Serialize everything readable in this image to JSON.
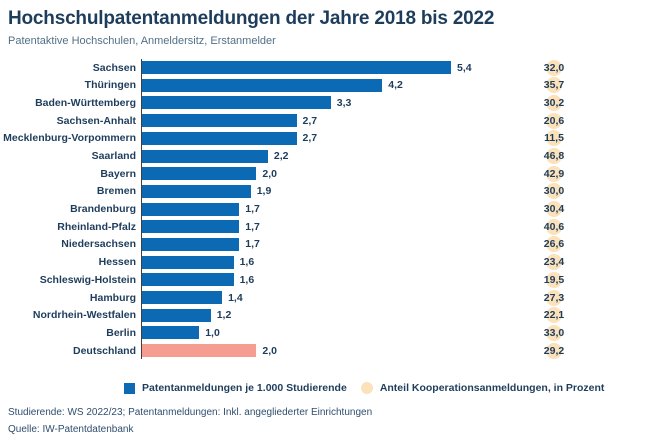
{
  "header": {
    "title": "Hochschulpatentanmeldungen der Jahre 2018 bis 2022",
    "subtitle": "Patentaktive Hochschulen, Anmeldersitz, Erstanmelder"
  },
  "chart_data": {
    "type": "bar",
    "orientation": "horizontal",
    "title": "Hochschulpatentanmeldungen der Jahre 2018 bis 2022",
    "subtitle": "Patentaktive Hochschulen, Anmeldersitz, Erstanmelder",
    "xlim": [
      0,
      5.6
    ],
    "grid": false,
    "legend_position": "bottom",
    "series": [
      {
        "name": "Patentanmeldungen je 1.000 Studierende",
        "mark": "bar",
        "color": "#0c69b4"
      },
      {
        "name": "Anteil Kooperationsanmeldungen, in Prozent",
        "mark": "circle-label",
        "color": "#fbe2bb"
      }
    ],
    "categories": [
      "Sachsen",
      "Thüringen",
      "Baden-Württemberg",
      "Sachsen-Anhalt",
      "Mecklenburg-Vorpommern",
      "Saarland",
      "Bayern",
      "Bremen",
      "Brandenburg",
      "Rheinland-Pfalz",
      "Niedersachsen",
      "Hessen",
      "Schleswig-Holstein",
      "Hamburg",
      "Nordrhein-Westfalen",
      "Berlin",
      "Deutschland"
    ],
    "rows": [
      {
        "label": "Sachsen",
        "value": 5.4,
        "value_label": "5,4",
        "coop": 32.0,
        "coop_label": "32,0",
        "highlight": false
      },
      {
        "label": "Thüringen",
        "value": 4.2,
        "value_label": "4,2",
        "coop": 35.7,
        "coop_label": "35,7",
        "highlight": false
      },
      {
        "label": "Baden-Württemberg",
        "value": 3.3,
        "value_label": "3,3",
        "coop": 30.2,
        "coop_label": "30,2",
        "highlight": false
      },
      {
        "label": "Sachsen-Anhalt",
        "value": 2.7,
        "value_label": "2,7",
        "coop": 20.6,
        "coop_label": "20,6",
        "highlight": false
      },
      {
        "label": "Mecklenburg-Vorpommern",
        "value": 2.7,
        "value_label": "2,7",
        "coop": 11.5,
        "coop_label": "11,5",
        "highlight": false
      },
      {
        "label": "Saarland",
        "value": 2.2,
        "value_label": "2,2",
        "coop": 46.8,
        "coop_label": "46,8",
        "highlight": false
      },
      {
        "label": "Bayern",
        "value": 2.0,
        "value_label": "2,0",
        "coop": 42.9,
        "coop_label": "42,9",
        "highlight": false
      },
      {
        "label": "Bremen",
        "value": 1.9,
        "value_label": "1,9",
        "coop": 30.0,
        "coop_label": "30,0",
        "highlight": false
      },
      {
        "label": "Brandenburg",
        "value": 1.7,
        "value_label": "1,7",
        "coop": 30.4,
        "coop_label": "30,4",
        "highlight": false
      },
      {
        "label": "Rheinland-Pfalz",
        "value": 1.7,
        "value_label": "1,7",
        "coop": 40.6,
        "coop_label": "40,6",
        "highlight": false
      },
      {
        "label": "Niedersachsen",
        "value": 1.7,
        "value_label": "1,7",
        "coop": 26.6,
        "coop_label": "26,6",
        "highlight": false
      },
      {
        "label": "Hessen",
        "value": 1.6,
        "value_label": "1,6",
        "coop": 23.4,
        "coop_label": "23,4",
        "highlight": false
      },
      {
        "label": "Schleswig-Holstein",
        "value": 1.6,
        "value_label": "1,6",
        "coop": 19.5,
        "coop_label": "19,5",
        "highlight": false
      },
      {
        "label": "Hamburg",
        "value": 1.4,
        "value_label": "1,4",
        "coop": 27.3,
        "coop_label": "27,3",
        "highlight": false
      },
      {
        "label": "Nordrhein-Westfalen",
        "value": 1.2,
        "value_label": "1,2",
        "coop": 22.1,
        "coop_label": "22,1",
        "highlight": false
      },
      {
        "label": "Berlin",
        "value": 1.0,
        "value_label": "1,0",
        "coop": 33.0,
        "coop_label": "33,0",
        "highlight": false
      },
      {
        "label": "Deutschland",
        "value": 2.0,
        "value_label": "2,0",
        "coop": 29.2,
        "coop_label": "29,2",
        "highlight": true
      }
    ],
    "colors": {
      "bar": "#0c69b4",
      "highlight_bar": "#f59d90",
      "marker": "#fbe2bb",
      "text": "#1e3d5c"
    }
  },
  "legend": {
    "items": [
      {
        "label": "Patentanmeldungen je 1.000 Studierende",
        "swatch": "square",
        "color": "#0c69b4"
      },
      {
        "label": "Anteil Kooperationsanmeldungen, in Prozent",
        "swatch": "circle",
        "color": "#fbe2bb"
      }
    ]
  },
  "footer": {
    "note": "Studierende: WS 2022/23; Patentanmeldungen: Inkl. angegliederter Einrichtungen",
    "source": "Quelle: IW-Patentdatenbank"
  }
}
